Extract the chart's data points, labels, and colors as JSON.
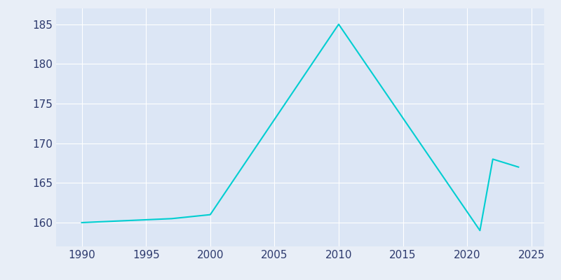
{
  "years": [
    1990,
    1997,
    2000,
    2010,
    2021,
    2022,
    2024
  ],
  "population": [
    160,
    160.5,
    161,
    185,
    159,
    168,
    167
  ],
  "line_color": "#00CED1",
  "fig_bg_color": "#E8EEF7",
  "plot_bg_color": "#dce6f5",
  "xlim": [
    1988,
    2026
  ],
  "ylim": [
    157,
    187
  ],
  "yticks": [
    160,
    165,
    170,
    175,
    180,
    185
  ],
  "xticks": [
    1990,
    1995,
    2000,
    2005,
    2010,
    2015,
    2020,
    2025
  ],
  "linewidth": 1.5,
  "tick_label_color": "#2d3a6e",
  "tick_label_fontsize": 11,
  "grid_color": "#ffffff",
  "grid_linewidth": 0.8
}
